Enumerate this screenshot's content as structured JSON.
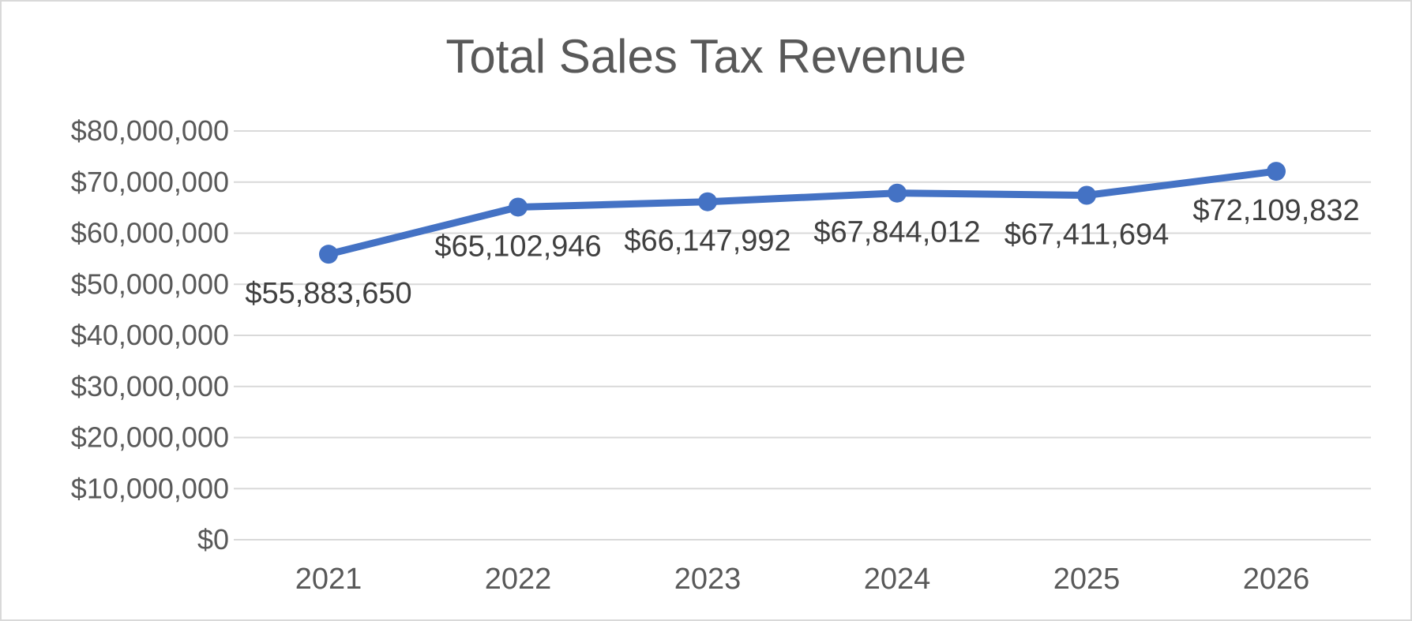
{
  "chart_data": {
    "type": "line",
    "title": "Total Sales Tax Revenue",
    "xlabel": "",
    "ylabel": "",
    "categories": [
      "2021",
      "2022",
      "2023",
      "2024",
      "2025",
      "2026"
    ],
    "series": [
      {
        "values": [
          55883650,
          65102946,
          66147992,
          67844012,
          67411694,
          72109832
        ],
        "color": "#4472c4"
      }
    ],
    "data_labels": [
      "$55,883,650",
      "$65,102,946",
      "$66,147,992",
      "$67,844,012",
      "$67,411,694",
      "$72,109,832"
    ],
    "ylim": [
      0,
      80000000
    ],
    "y_ticks": [
      0,
      10000000,
      20000000,
      30000000,
      40000000,
      50000000,
      60000000,
      70000000,
      80000000
    ],
    "y_tick_labels": [
      "$0",
      "$10,000,000",
      "$20,000,000",
      "$30,000,000",
      "$40,000,000",
      "$50,000,000",
      "$60,000,000",
      "$70,000,000",
      "$80,000,000"
    ],
    "grid": true,
    "legend": "none",
    "gridline_color": "#d9d9d9",
    "text_color": "#595959"
  }
}
